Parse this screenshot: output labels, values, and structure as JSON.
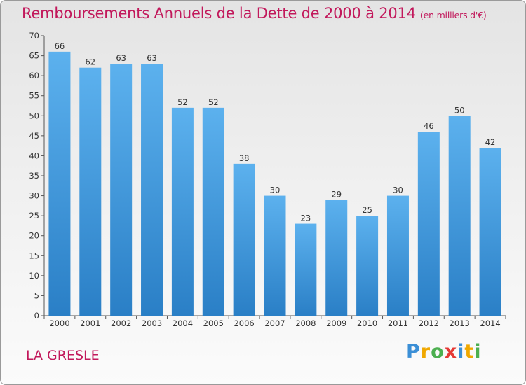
{
  "header": {
    "title": "Remboursements Annuels de la Dette de 2000 à 2014",
    "subtitle": "(en milliers d'€)"
  },
  "footer": {
    "place": "LA GRESLE",
    "logo": "Proxiti"
  },
  "colors": {
    "bar": "#3c96dc",
    "text_accent": "#c2185b"
  },
  "chart_data": {
    "type": "bar",
    "title": "Remboursements Annuels de la Dette de 2000 à 2014",
    "subtitle": "(en milliers d'€)",
    "categories": [
      "2000",
      "2001",
      "2002",
      "2003",
      "2004",
      "2005",
      "2006",
      "2007",
      "2008",
      "2009",
      "2010",
      "2011",
      "2012",
      "2013",
      "2014"
    ],
    "values": [
      66,
      62,
      63,
      63,
      52,
      52,
      38,
      30,
      23,
      29,
      25,
      30,
      46,
      50,
      42
    ],
    "ylim": [
      0,
      70
    ],
    "yticks": [
      0,
      5,
      10,
      15,
      20,
      25,
      30,
      35,
      40,
      45,
      50,
      55,
      60,
      65,
      70
    ],
    "grid": false,
    "data_labels": true
  }
}
